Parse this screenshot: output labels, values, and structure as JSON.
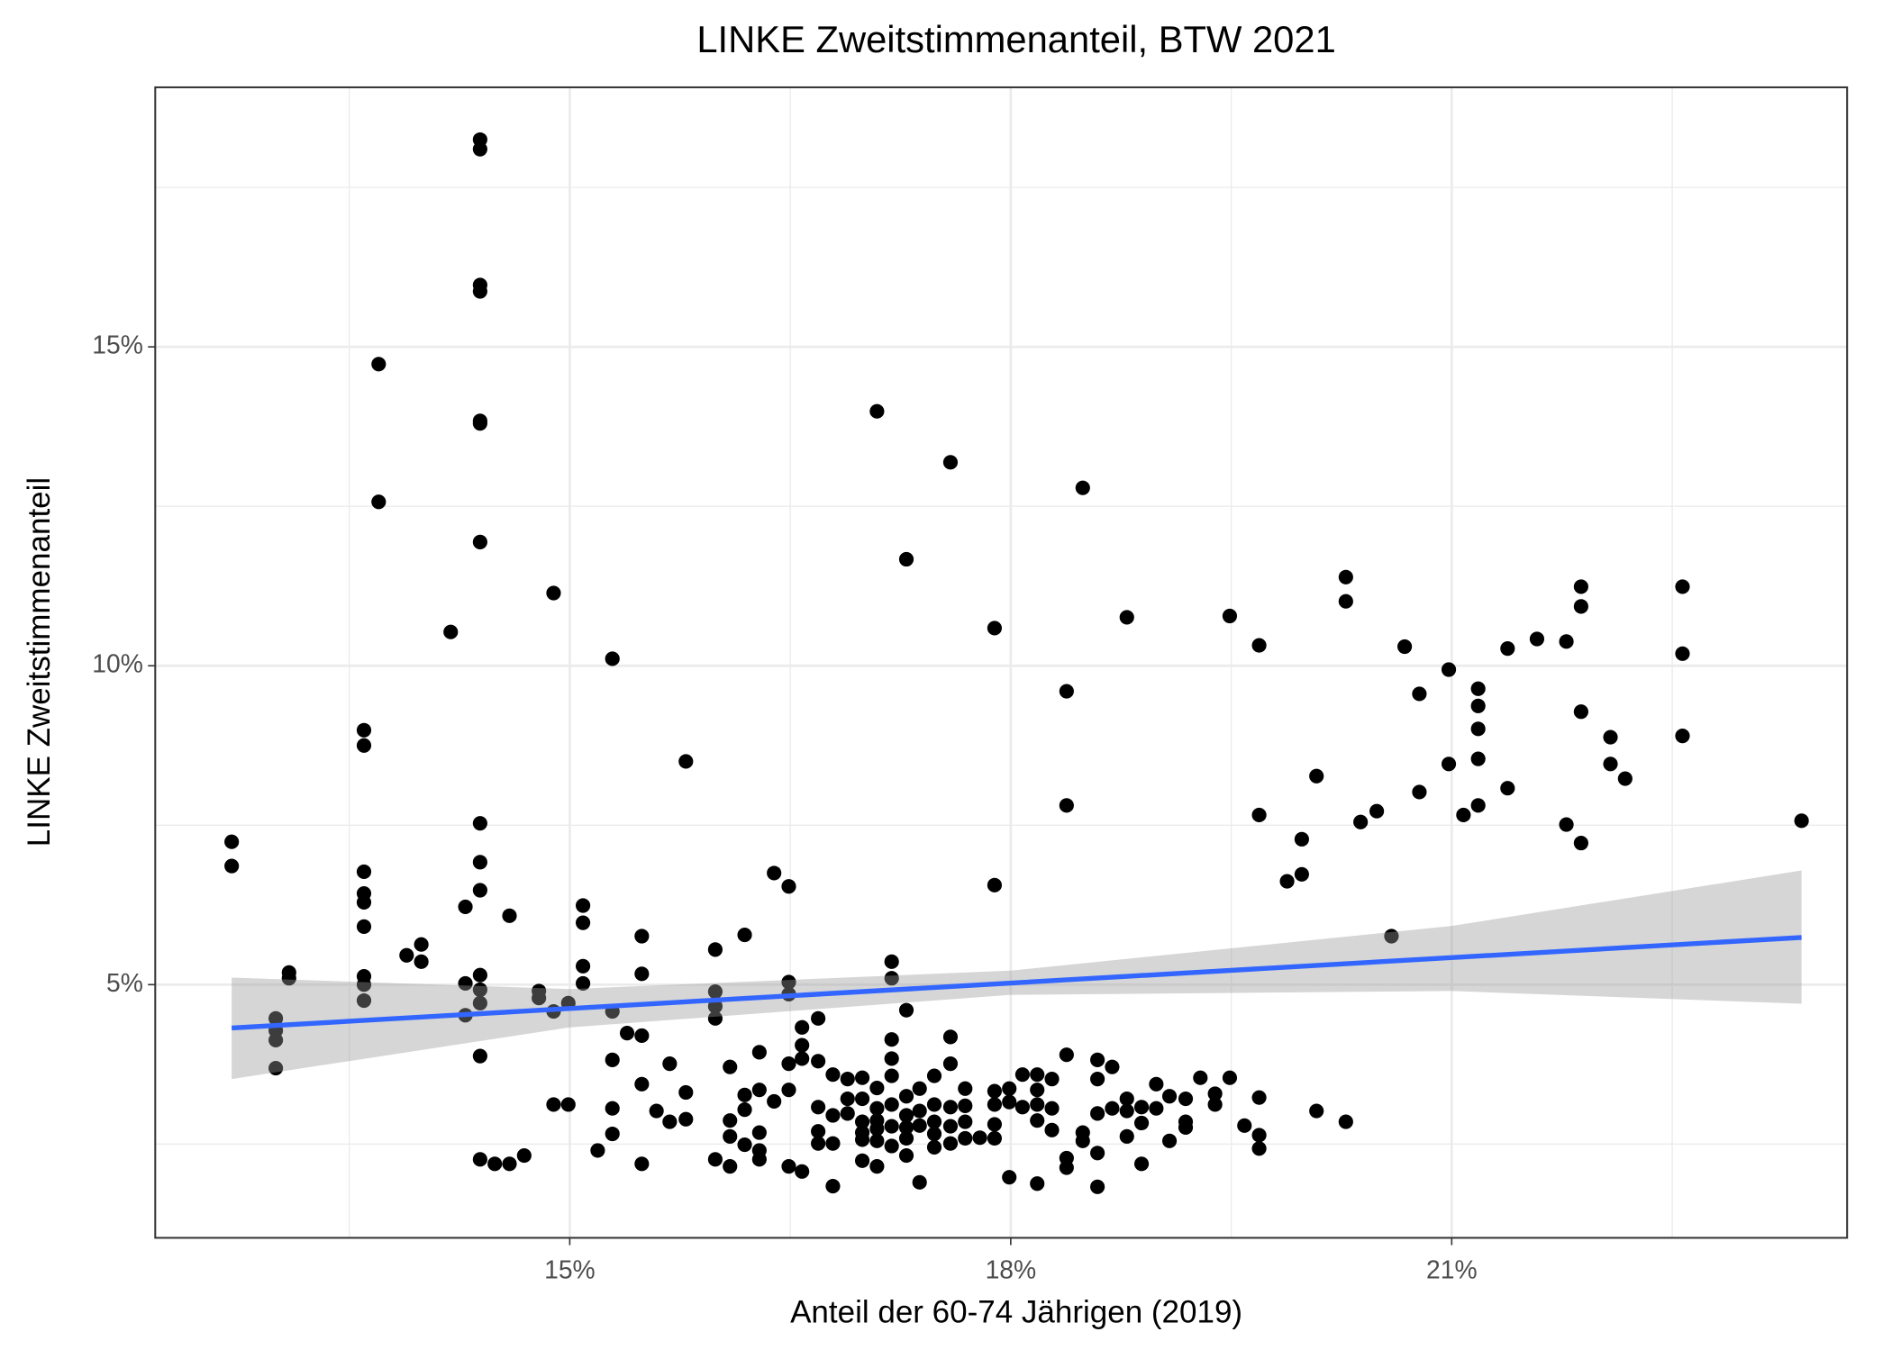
{
  "chart_data": {
    "type": "scatter",
    "title": "LINKE Zweitstimmenanteil, BTW 2021",
    "x_label": "Anteil der 60-74 Jährigen (2019)",
    "y_label": "LINKE Zweitstimmenanteil",
    "xlim": [
      12.18,
      23.69
    ],
    "ylim": [
      1.03,
      19.07
    ],
    "xticks": [
      {
        "value": 15,
        "label": "15%"
      },
      {
        "value": 18,
        "label": "18%"
      },
      {
        "value": 21,
        "label": "21%"
      }
    ],
    "yticks": [
      {
        "value": 5,
        "label": "5%"
      },
      {
        "value": 10,
        "label": "10%"
      },
      {
        "value": 15,
        "label": "15%"
      }
    ],
    "grid": true,
    "color": "#000000",
    "x": [
      12.7,
      12.7,
      13.0,
      13.0,
      13.0,
      13.0,
      13.09,
      13.09,
      13.6,
      13.6,
      13.6,
      13.6,
      13.6,
      13.6,
      13.6,
      13.6,
      13.6,
      13.7,
      13.7,
      13.89,
      13.99,
      13.99,
      14.19,
      14.29,
      14.29,
      14.29,
      14.39,
      14.39,
      14.39,
      14.39,
      14.39,
      14.39,
      14.39,
      14.39,
      14.39,
      14.39,
      14.39,
      14.39,
      14.39,
      14.39,
      14.39,
      14.49,
      14.59,
      14.69,
      14.59,
      14.79,
      14.79,
      14.89,
      14.89,
      14.89,
      14.99,
      14.99,
      15.09,
      15.09,
      15.09,
      15.09,
      15.19,
      15.29,
      15.29,
      15.29,
      15.29,
      15.29,
      15.39,
      15.49,
      15.49,
      15.49,
      15.49,
      15.49,
      15.59,
      15.68,
      15.68,
      15.79,
      15.79,
      15.79,
      15.99,
      15.99,
      15.99,
      15.99,
      15.99,
      16.09,
      16.09,
      16.09,
      16.09,
      16.19,
      16.19,
      16.19,
      16.19,
      16.29,
      16.29,
      16.29,
      16.29,
      16.29,
      16.39,
      16.39,
      16.49,
      16.49,
      16.49,
      16.49,
      16.49,
      16.49,
      16.58,
      16.58,
      16.58,
      16.58,
      16.69,
      16.69,
      16.69,
      16.69,
      16.69,
      16.79,
      16.79,
      16.79,
      16.79,
      16.89,
      16.89,
      16.89,
      16.99,
      16.99,
      16.99,
      16.99,
      16.99,
      16.99,
      17.09,
      17.09,
      17.09,
      17.09,
      17.09,
      17.09,
      17.09,
      17.19,
      17.19,
      17.19,
      17.19,
      17.19,
      17.19,
      17.19,
      17.19,
      17.29,
      17.29,
      17.29,
      17.29,
      17.29,
      17.29,
      17.29,
      17.38,
      17.38,
      17.38,
      17.38,
      17.48,
      17.48,
      17.48,
      17.48,
      17.48,
      17.59,
      17.59,
      17.59,
      17.59,
      17.59,
      17.59,
      17.69,
      17.69,
      17.69,
      17.69,
      17.79,
      17.89,
      17.89,
      17.89,
      17.89,
      17.89,
      17.89,
      17.99,
      17.99,
      17.99,
      18.08,
      18.08,
      18.18,
      18.18,
      18.18,
      18.18,
      18.18,
      18.28,
      18.28,
      18.28,
      18.38,
      18.38,
      18.38,
      18.38,
      18.38,
      18.49,
      18.49,
      18.49,
      18.59,
      18.59,
      18.59,
      18.59,
      18.59,
      18.69,
      18.69,
      18.79,
      18.79,
      18.79,
      18.79,
      18.89,
      18.89,
      18.89,
      18.99,
      18.99,
      19.08,
      19.08,
      19.19,
      19.19,
      19.19,
      19.29,
      19.39,
      19.39,
      19.49,
      19.49,
      19.59,
      19.69,
      19.69,
      19.69,
      19.69,
      19.69,
      19.88,
      19.98,
      19.98,
      20.08,
      20.08,
      20.28,
      20.28,
      20.28,
      20.38,
      20.49,
      20.59,
      20.68,
      20.78,
      20.78,
      20.98,
      20.98,
      21.08,
      21.18,
      21.18,
      21.18,
      21.18,
      21.18,
      21.38,
      21.38,
      21.58,
      21.78,
      21.78,
      21.88,
      21.88,
      21.88,
      21.88,
      22.08,
      22.08,
      22.18,
      22.57,
      22.57,
      22.57,
      23.38
    ],
    "y": [
      7.24,
      6.86,
      4.47,
      4.28,
      4.13,
      3.69,
      5.19,
      5.1,
      8.99,
      8.75,
      6.77,
      6.43,
      6.29,
      5.91,
      5.13,
      5.0,
      4.75,
      14.73,
      12.57,
      5.46,
      5.63,
      5.36,
      10.53,
      6.22,
      5.02,
      4.52,
      18.25,
      18.1,
      15.97,
      15.87,
      13.84,
      13.8,
      11.94,
      7.53,
      6.92,
      6.48,
      5.15,
      4.92,
      4.71,
      3.88,
      2.26,
      2.19,
      2.19,
      2.32,
      6.08,
      4.9,
      4.79,
      11.14,
      4.58,
      3.12,
      3.12,
      4.71,
      6.24,
      5.97,
      5.29,
      5.02,
      2.4,
      10.11,
      4.58,
      3.82,
      3.06,
      2.66,
      4.24,
      5.76,
      5.17,
      4.2,
      3.44,
      2.19,
      3.02,
      3.76,
      2.85,
      8.5,
      3.31,
      2.89,
      5.55,
      4.89,
      4.66,
      4.47,
      2.26,
      3.71,
      2.87,
      2.62,
      2.15,
      5.78,
      3.27,
      3.04,
      2.49,
      3.94,
      3.35,
      2.68,
      2.4,
      2.26,
      6.75,
      3.17,
      6.54,
      5.04,
      4.85,
      3.76,
      3.35,
      2.15,
      4.33,
      4.05,
      3.84,
      2.07,
      4.47,
      3.8,
      3.08,
      2.7,
      2.51,
      3.59,
      2.95,
      2.51,
      1.84,
      3.52,
      3.21,
      2.98,
      3.54,
      3.21,
      2.85,
      2.68,
      2.57,
      2.24,
      13.99,
      3.38,
      3.06,
      2.87,
      2.74,
      2.55,
      2.15,
      5.36,
      5.1,
      4.14,
      3.84,
      3.57,
      3.12,
      2.78,
      2.47,
      11.67,
      4.6,
      3.25,
      2.95,
      2.76,
      2.59,
      2.32,
      3.37,
      3.02,
      2.79,
      1.9,
      3.57,
      3.12,
      2.85,
      2.66,
      2.45,
      13.19,
      4.18,
      3.76,
      3.08,
      2.78,
      2.51,
      3.37,
      3.1,
      2.85,
      2.59,
      2.6,
      10.59,
      6.56,
      3.33,
      3.12,
      2.81,
      2.59,
      3.37,
      3.16,
      1.98,
      3.59,
      3.08,
      3.59,
      3.35,
      3.12,
      2.87,
      1.88,
      3.52,
      3.06,
      2.72,
      9.6,
      7.81,
      3.9,
      2.28,
      2.13,
      12.79,
      2.68,
      2.55,
      3.82,
      3.52,
      2.98,
      2.36,
      1.83,
      3.71,
      3.06,
      10.76,
      3.21,
      3.02,
      2.62,
      3.08,
      2.83,
      2.19,
      3.44,
      3.06,
      3.25,
      2.55,
      3.21,
      2.85,
      2.76,
      3.54,
      3.29,
      3.12,
      10.78,
      3.54,
      2.79,
      10.32,
      7.66,
      3.23,
      2.64,
      2.43,
      6.62,
      7.28,
      6.73,
      8.27,
      3.02,
      11.39,
      11.01,
      2.85,
      7.55,
      7.72,
      5.76,
      10.3,
      9.56,
      8.02,
      9.94,
      8.46,
      7.66,
      9.64,
      9.37,
      9.01,
      8.54,
      7.81,
      10.27,
      8.08,
      10.42,
      10.38,
      7.51,
      11.24,
      10.93,
      9.28,
      7.22,
      8.88,
      8.46,
      8.23,
      11.24,
      10.19,
      8.9,
      7.57
    ],
    "fit": {
      "color": "#3366ff",
      "x": [
        12.7,
        23.38
      ],
      "y": [
        4.32,
        5.74
      ]
    },
    "band": {
      "color": "#999999",
      "x": [
        12.7,
        15,
        18,
        21,
        23.38
      ],
      "lower": [
        3.52,
        4.33,
        4.84,
        4.9,
        4.7
      ],
      "upper": [
        5.11,
        4.93,
        5.22,
        5.92,
        6.79
      ]
    }
  }
}
